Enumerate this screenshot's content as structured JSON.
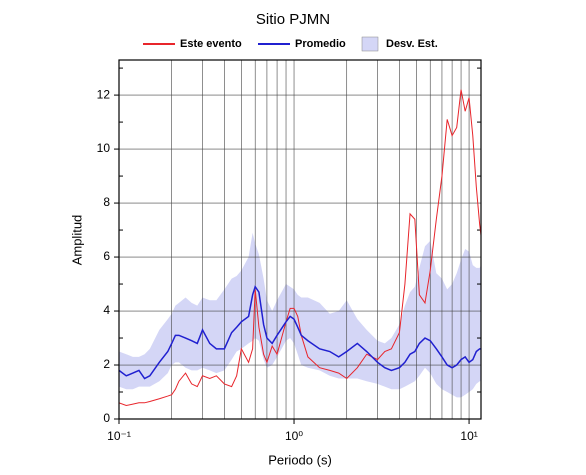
{
  "chart_data": {
    "type": "line",
    "title": "Sitio PJMN",
    "xlabel": "Periodo (s)",
    "ylabel": "Amplitud",
    "xscale": "log",
    "grid": true,
    "xlim": [
      0.1,
      11.7
    ],
    "ylim": [
      0,
      13.3
    ],
    "xticks": [
      {
        "value": 0.1,
        "label": "10⁻¹"
      },
      {
        "value": 1,
        "label": "10⁰"
      },
      {
        "value": 10,
        "label": "10¹"
      }
    ],
    "xminorticks": [
      0.2,
      0.3,
      0.4,
      0.5,
      0.6,
      0.7,
      0.8,
      0.9,
      2,
      3,
      4,
      5,
      6,
      7,
      8,
      9
    ],
    "yticks": [
      0,
      2,
      4,
      6,
      8,
      10,
      12
    ],
    "yminorticks": [
      1,
      3,
      5,
      7,
      9,
      11,
      13
    ],
    "x": [
      0.1,
      0.11,
      0.12,
      0.13,
      0.14,
      0.15,
      0.17,
      0.19,
      0.2,
      0.21,
      0.22,
      0.24,
      0.26,
      0.28,
      0.3,
      0.33,
      0.36,
      0.4,
      0.44,
      0.47,
      0.5,
      0.55,
      0.58,
      0.6,
      0.63,
      0.67,
      0.7,
      0.75,
      0.8,
      0.9,
      0.95,
      1,
      1.05,
      1.1,
      1.2,
      1.4,
      1.6,
      1.8,
      2,
      2.3,
      2.6,
      3,
      3.3,
      3.6,
      4,
      4.3,
      4.6,
      4.9,
      5.2,
      5.6,
      6,
      6.5,
      7,
      7.5,
      8,
      8.5,
      9,
      9.5,
      10,
      10.5,
      11,
      11.5,
      11.7
    ],
    "series": [
      {
        "name": "Este evento",
        "color": "#e8252b",
        "values": [
          0.6,
          0.5,
          0.55,
          0.6,
          0.6,
          0.65,
          0.75,
          0.85,
          0.9,
          1.1,
          1.4,
          1.7,
          1.3,
          1.2,
          1.6,
          1.5,
          1.6,
          1.3,
          1.2,
          1.6,
          2.6,
          2.1,
          2.6,
          4.8,
          3.4,
          2.4,
          2.1,
          2.7,
          2.4,
          3.6,
          4.1,
          4.1,
          3.8,
          3.1,
          2.3,
          1.9,
          1.8,
          1.7,
          1.5,
          1.9,
          2.4,
          2.2,
          2.5,
          2.6,
          3.2,
          5.0,
          7.6,
          7.4,
          4.6,
          4.3,
          5.5,
          7.4,
          9.0,
          11.1,
          10.5,
          10.8,
          12.2,
          11.4,
          11.9,
          10.5,
          8.6,
          7.2,
          6.8
        ]
      },
      {
        "name": "Promedio",
        "color": "#2020d0",
        "values": [
          1.8,
          1.6,
          1.7,
          1.8,
          1.5,
          1.6,
          2.1,
          2.5,
          2.8,
          3.1,
          3.1,
          3.0,
          2.9,
          2.8,
          3.3,
          2.8,
          2.6,
          2.6,
          3.2,
          3.4,
          3.6,
          3.8,
          4.6,
          4.9,
          4.7,
          3.5,
          3.0,
          2.8,
          3.1,
          3.6,
          3.8,
          3.7,
          3.4,
          3.1,
          2.9,
          2.6,
          2.5,
          2.3,
          2.5,
          2.8,
          2.5,
          2.1,
          1.9,
          1.8,
          1.9,
          2.1,
          2.4,
          2.5,
          2.8,
          3.0,
          2.9,
          2.6,
          2.3,
          2.0,
          1.9,
          2.0,
          2.2,
          2.3,
          2.1,
          2.2,
          2.5,
          2.6,
          2.6
        ]
      },
      {
        "name": "Desv. Est.",
        "color": "#d4d6f6",
        "upper": [
          2.5,
          2.4,
          2.3,
          2.3,
          2.4,
          2.6,
          3.3,
          3.7,
          3.9,
          4.2,
          4.3,
          4.5,
          4.3,
          4.2,
          4.5,
          4.4,
          4.4,
          4.8,
          5.2,
          5.3,
          5.5,
          6.0,
          6.9,
          6.5,
          6.1,
          5.2,
          4.4,
          4.0,
          4.4,
          5.0,
          4.9,
          4.8,
          4.6,
          4.5,
          4.5,
          4.3,
          3.9,
          4.0,
          4.4,
          3.7,
          3.3,
          2.9,
          2.8,
          3.0,
          3.5,
          4.2,
          4.7,
          4.9,
          5.6,
          6.4,
          6.6,
          5.4,
          5.2,
          4.8,
          5.0,
          5.4,
          5.9,
          6.3,
          6.2,
          5.7,
          5.6,
          5.6,
          5.7
        ],
        "lower": [
          1.2,
          1.1,
          1.1,
          1.2,
          1.2,
          1.2,
          1.4,
          1.7,
          2.0,
          2.1,
          2.1,
          1.9,
          1.8,
          1.8,
          1.9,
          1.8,
          1.7,
          1.8,
          2.2,
          2.5,
          2.6,
          2.8,
          2.9,
          3.0,
          2.9,
          2.2,
          1.9,
          2.0,
          2.3,
          2.9,
          3.0,
          2.8,
          2.4,
          2.0,
          1.9,
          1.8,
          1.6,
          1.5,
          1.5,
          1.5,
          1.4,
          1.3,
          1.2,
          1.1,
          1.1,
          1.2,
          1.3,
          1.4,
          1.6,
          1.9,
          1.7,
          1.3,
          1.1,
          1.0,
          0.9,
          0.8,
          0.8,
          0.9,
          1.0,
          1.1,
          1.3,
          1.4,
          1.4
        ]
      }
    ]
  }
}
